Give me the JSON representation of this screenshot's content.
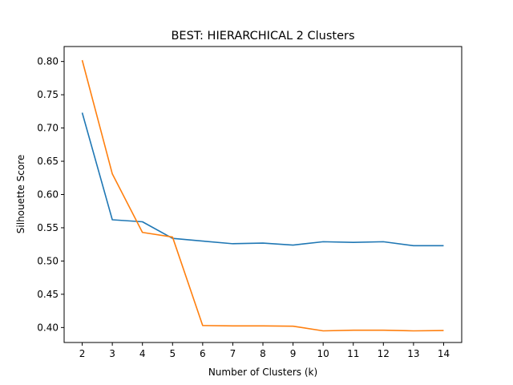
{
  "chart_data": {
    "type": "line",
    "title": "BEST: HIERARCHICAL  2 Clusters",
    "xlabel": "Number of Clusters (k)",
    "ylabel": "Silhouette Score",
    "x": [
      2,
      3,
      4,
      5,
      6,
      7,
      8,
      9,
      10,
      11,
      12,
      13,
      14
    ],
    "xlim": [
      1.4,
      14.6
    ],
    "ylim": [
      0.3775,
      0.8225
    ],
    "xticks": [
      "2",
      "3",
      "4",
      "5",
      "6",
      "7",
      "8",
      "9",
      "10",
      "11",
      "12",
      "13",
      "14"
    ],
    "yticks": [
      "0.40",
      "0.45",
      "0.50",
      "0.55",
      "0.60",
      "0.65",
      "0.70",
      "0.75",
      "0.80"
    ],
    "grid": false,
    "series": [
      {
        "color": "#1f77b4",
        "values": [
          0.723,
          0.562,
          0.559,
          0.534,
          0.53,
          0.526,
          0.527,
          0.524,
          0.529,
          0.528,
          0.529,
          0.523,
          0.523
        ]
      },
      {
        "color": "#ff7f0e",
        "values": [
          0.802,
          0.631,
          0.543,
          0.536,
          0.403,
          0.4025,
          0.4025,
          0.402,
          0.395,
          0.396,
          0.396,
          0.395,
          0.3955
        ]
      }
    ]
  }
}
